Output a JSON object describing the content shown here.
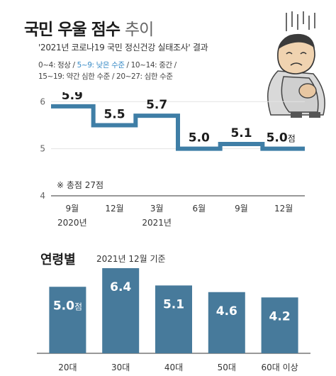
{
  "title": {
    "main": "국민 우울 점수",
    "suffix": "추이"
  },
  "subtitle": "'2021년 코로나19 국민 정신건강 실태조사' 결과",
  "legend": {
    "line1_a": "0~4: 정상 / ",
    "line1_b": "5~9: 낮은 수준",
    "line1_c": " / 10~14: 중간 /",
    "line2": "15~19: 약간 심한 수준 / 20~27: 심한 수준"
  },
  "note": "※ 총점 27점",
  "colors": {
    "line": "#3f7ea6",
    "bar": "#477a9b",
    "grid": "#e3e3e3",
    "highlight": "#3a8cc7"
  },
  "chart_data": [
    {
      "type": "line",
      "step": true,
      "x": [
        "9월 2020년",
        "12월",
        "3월 2021년",
        "6월",
        "9월",
        "12월"
      ],
      "x_ticks": [
        {
          "month": "9월",
          "year": "2020년"
        },
        {
          "month": "12월",
          "year": ""
        },
        {
          "month": "3월",
          "year": "2021년"
        },
        {
          "month": "6월",
          "year": ""
        },
        {
          "month": "9월",
          "year": ""
        },
        {
          "month": "12월",
          "year": ""
        }
      ],
      "values": [
        5.9,
        5.5,
        5.7,
        5.0,
        5.1,
        5.0
      ],
      "value_labels": [
        "5.9",
        "5.5",
        "5.7",
        "5.0",
        "5.1",
        "5.0"
      ],
      "last_unit": "점",
      "y_ticks": [
        "6",
        "5",
        "4"
      ],
      "ylim": [
        4,
        6.2
      ]
    },
    {
      "type": "bar",
      "title": "연령별",
      "subtitle": "2021년 12월 기준",
      "categories": [
        "20대",
        "30대",
        "40대",
        "50대",
        "60대 이상"
      ],
      "values": [
        5.0,
        6.4,
        5.1,
        4.6,
        4.2
      ],
      "value_labels": [
        "5.0",
        "6.4",
        "5.1",
        "4.6",
        "4.2"
      ],
      "first_unit": "점",
      "ylim": [
        0,
        6.4
      ]
    }
  ]
}
